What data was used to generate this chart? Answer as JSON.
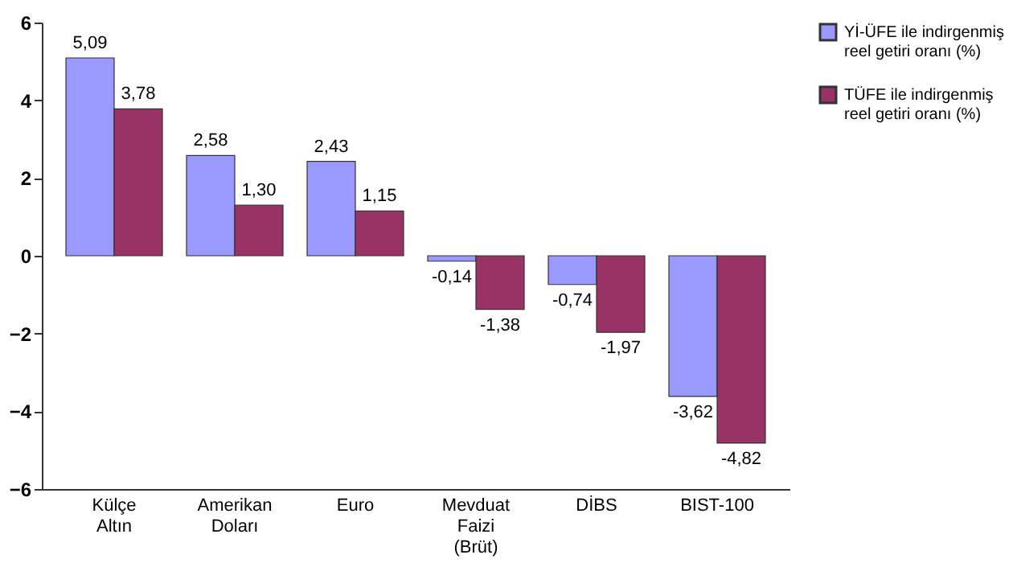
{
  "chart_data": {
    "type": "bar",
    "categories": [
      "Külçe Altın",
      "Amerikan Doları",
      "Euro",
      "Mevduat Faizi (Brüt)",
      "DİBS",
      "BIST-100"
    ],
    "series": [
      {
        "name": "Yİ-ÜFE ile indirgenmiş reel getiri oranı (%)",
        "color": "#9999ff",
        "values": [
          5.09,
          2.58,
          2.43,
          -0.14,
          -0.74,
          -3.62
        ],
        "value_labels": [
          "5,09",
          "2,58",
          "2,43",
          "-0,14",
          "-0,74",
          "-3,62"
        ]
      },
      {
        "name": "TÜFE ile indirgenmiş reel getiri oranı (%)",
        "color": "#993366",
        "values": [
          3.78,
          1.3,
          1.15,
          -1.38,
          -1.97,
          -4.82
        ],
        "value_labels": [
          "3,78",
          "1,30",
          "1,15",
          "-1,38",
          "-1,97",
          "-4,82"
        ]
      }
    ],
    "ylim": [
      -6,
      6
    ],
    "yticks": [
      -6,
      -4,
      -2,
      0,
      2,
      4,
      6
    ],
    "grid": false,
    "legend": "right"
  }
}
